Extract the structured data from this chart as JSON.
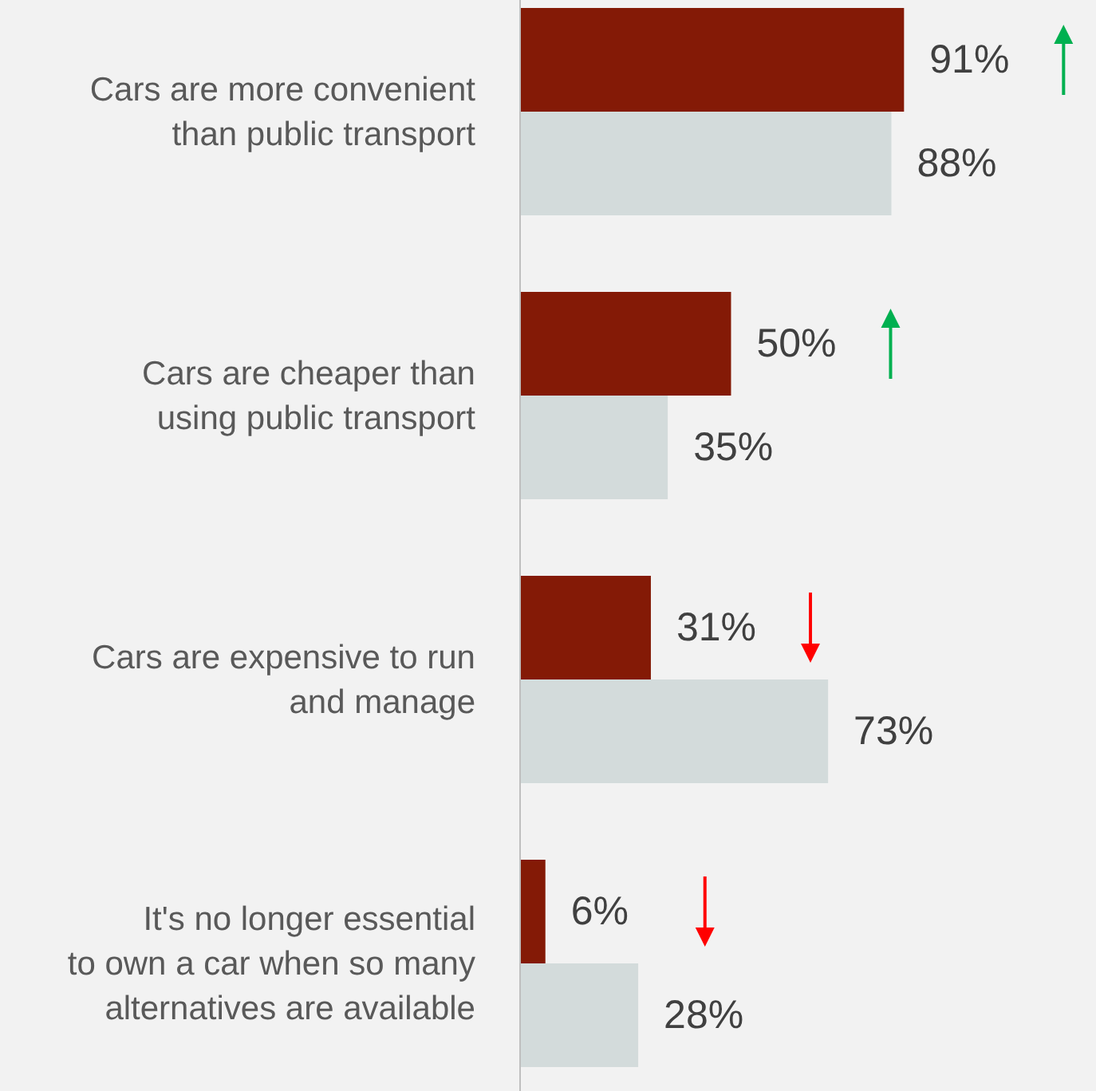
{
  "chart_data": {
    "type": "bar",
    "orientation": "horizontal",
    "categories": [
      "Cars are more convenient than public transport",
      "Cars are cheaper than using public transport",
      "Cars are expensive to run and manage",
      "It's no longer essential to own a car when so many alternatives are available"
    ],
    "series": [
      {
        "color": "#841a06",
        "values": [
          91,
          50,
          31,
          6
        ],
        "value_labels": [
          "91%",
          "50%",
          "31%",
          "6%"
        ]
      },
      {
        "color": "#d3dbdb",
        "values": [
          88,
          35,
          73,
          28
        ],
        "value_labels": [
          "88%",
          "35%",
          "73%",
          "28%"
        ]
      }
    ],
    "tick_labels": "y"
  }
}
